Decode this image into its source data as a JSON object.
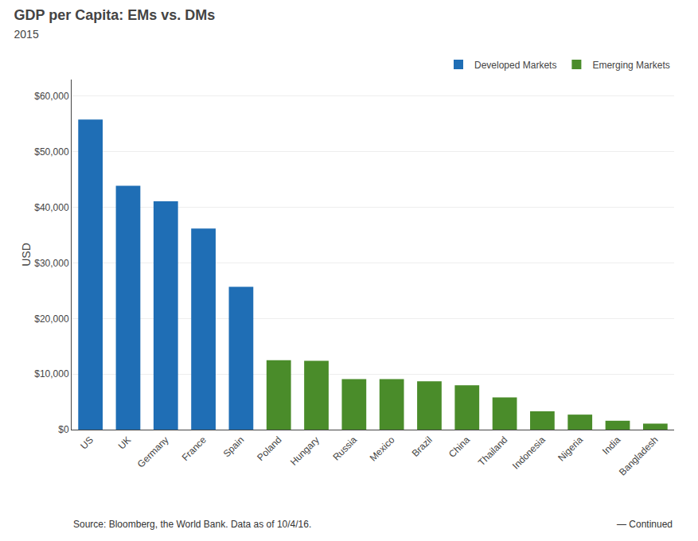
{
  "chart_data": {
    "type": "bar",
    "title": "GDP per Capita: EMs vs. DMs",
    "subtitle": "2015",
    "ylabel": "USD",
    "categories": [
      "US",
      "UK",
      "Germany",
      "France",
      "Spain",
      "Poland",
      "Hungary",
      "Russia",
      "Mexico",
      "Brazil",
      "China",
      "Thailand",
      "Indonesia",
      "Nigeria",
      "India",
      "Bangladesh"
    ],
    "series": [
      {
        "name": "Developed Markets",
        "color": "#1f6eb5",
        "values": [
          55805,
          43900,
          41100,
          36200,
          25700,
          null,
          null,
          null,
          null,
          null,
          null,
          null,
          null,
          null,
          null,
          null
        ]
      },
      {
        "name": "Emerging Markets",
        "color": "#4a8c2a",
        "values": [
          null,
          null,
          null,
          null,
          null,
          12500,
          12400,
          9100,
          9100,
          8700,
          8000,
          5800,
          3300,
          2700,
          1600,
          1080
        ]
      }
    ],
    "ylim": [
      0,
      63000
    ],
    "yticks": [
      {
        "value": 0,
        "label": "$0"
      },
      {
        "value": 10000,
        "label": "$10,000"
      },
      {
        "value": 20000,
        "label": "$20,000"
      },
      {
        "value": 30000,
        "label": "$30,000"
      },
      {
        "value": 40000,
        "label": "$40,000"
      },
      {
        "value": 50000,
        "label": "$50,000"
      },
      {
        "value": 60000,
        "label": "$60,000"
      }
    ],
    "grid": true,
    "legend": "top right",
    "annotations": [
      "Source: Bloomberg, the World Bank. Data as of 10/4/16.",
      "— Continued"
    ]
  }
}
